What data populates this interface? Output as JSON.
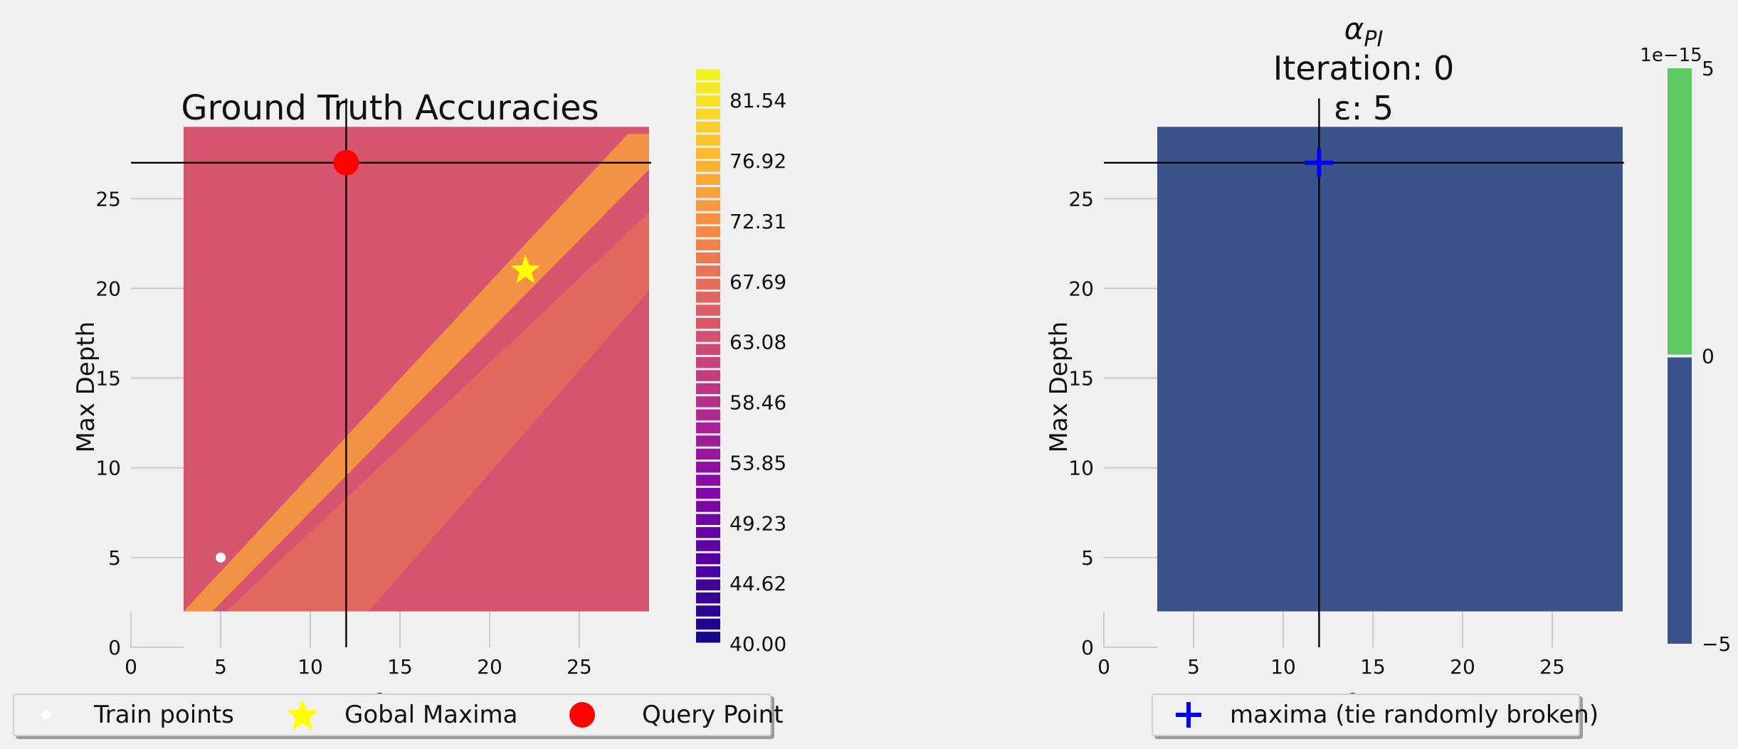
{
  "chart_data": [
    {
      "type": "heatmap",
      "title": "Ground Truth Accuracies",
      "xlabel": "# of Trees",
      "ylabel": "Max Depth",
      "xlim": [
        0,
        29
      ],
      "ylim": [
        0,
        29
      ],
      "xticks": [
        "0",
        "5",
        "10",
        "15",
        "20",
        "25"
      ],
      "yticks": [
        "0",
        "5",
        "10",
        "15",
        "20",
        "25"
      ],
      "colormap": "plasma",
      "colorbar": {
        "min": 40.0,
        "max": 84.0,
        "ticks": [
          "40.00",
          "44.62",
          "49.23",
          "53.85",
          "58.46",
          "63.08",
          "67.69",
          "72.31",
          "76.92",
          "81.54"
        ]
      },
      "description_values": {
        "background_accuracy_range": [
          62,
          66
        ],
        "diagonal_ridge_accuracy_range": [
          70,
          78
        ]
      },
      "train_points": [
        {
          "x": 5,
          "y": 5
        }
      ],
      "global_maxima": [
        {
          "x": 22,
          "y": 21
        }
      ],
      "query_point": {
        "x": 12,
        "y": 27
      },
      "crosshair": {
        "x": 12,
        "y": 27
      },
      "legend": {
        "position": "bottom-left",
        "entries": [
          "Train points",
          "Gobal Maxima",
          "Query Point"
        ]
      },
      "colors": {
        "train": "#ffffff",
        "maxima": "#ffff00",
        "query": "#ff0000"
      }
    },
    {
      "type": "heatmap",
      "title_line1": "α",
      "title_line1_sub": "PI",
      "title_line2": "Iteration: 0",
      "title_line3": "ε: 5",
      "xlabel": "# of Trees",
      "ylabel": "Max Depth",
      "xlim": [
        0,
        29
      ],
      "ylim": [
        0,
        29
      ],
      "xticks": [
        "0",
        "5",
        "10",
        "15",
        "20",
        "25"
      ],
      "yticks": [
        "0",
        "5",
        "10",
        "15",
        "20",
        "25"
      ],
      "field_value": 0,
      "field_color": "#3b528b",
      "colorbar": {
        "offset_text": "1e−15",
        "ticks": [
          "−5",
          "0",
          "5"
        ],
        "min": -5,
        "max": 5,
        "low_color": "#3b528b",
        "high_color": "#5ec962"
      },
      "maxima": [
        {
          "x": 12,
          "y": 27
        }
      ],
      "crosshair": {
        "x": 12,
        "y": 27
      },
      "legend": {
        "position": "bottom",
        "entries": [
          "maxima (tie randomly broken)"
        ]
      },
      "colors": {
        "maxima": "#0000ff"
      }
    }
  ]
}
